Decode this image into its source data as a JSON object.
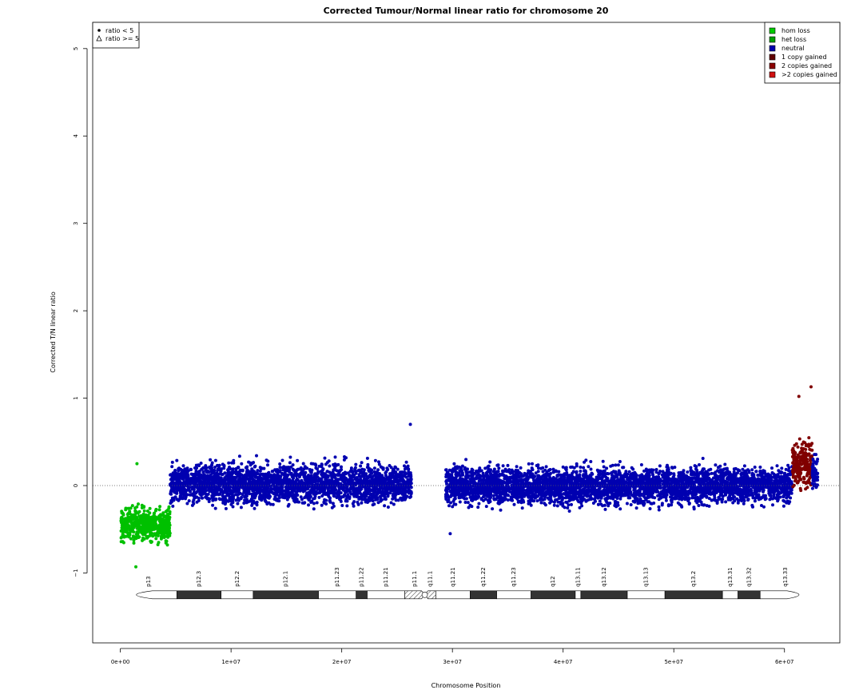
{
  "chart_data": {
    "type": "scatter",
    "title": "Corrected Tumour/Normal linear ratio for chromosome  20",
    "xlabel": "Chromosome Position",
    "ylabel": "Corrected T/N linear ratio",
    "xlim": [
      -2500000,
      65000000
    ],
    "ylim": [
      -1.8,
      5.3
    ],
    "x_ticks": [
      0,
      10000000,
      20000000,
      30000000,
      40000000,
      50000000,
      60000000
    ],
    "x_tick_labels": [
      "0e+00",
      "1e+07",
      "2e+07",
      "3e+07",
      "4e+07",
      "5e+07",
      "6e+07"
    ],
    "y_ticks": [
      -1,
      0,
      1,
      2,
      3,
      4,
      5
    ],
    "y_tick_labels": [
      "−1",
      "0",
      "1",
      "2",
      "3",
      "4",
      "5"
    ],
    "reference_line_y": 0,
    "shape_legend": {
      "position": "top-left",
      "entries": [
        {
          "label": "ratio < 5",
          "shape": "filled-circle"
        },
        {
          "label": "ratio >= 5",
          "shape": "open-triangle"
        }
      ]
    },
    "color_legend": {
      "position": "top-right",
      "entries": [
        {
          "label": "hom loss",
          "color": "#00cc00"
        },
        {
          "label": "het loss",
          "color": "#00a000"
        },
        {
          "label": "neutral",
          "color": "#0000b0"
        },
        {
          "label": "1 copy gained",
          "color": "#600000"
        },
        {
          "label": "2 copies gained",
          "color": "#8b0000"
        },
        {
          "label": ">2 copies gained",
          "color": "#d01010"
        }
      ]
    },
    "segments": [
      {
        "state": "het loss",
        "start": 60000,
        "end": 4500000,
        "median": -0.45,
        "spread": 0.15,
        "color": "#00c000"
      },
      {
        "state": "neutral",
        "start": 4500000,
        "end": 26300000,
        "median": 0.02,
        "spread": 0.18,
        "color": "#0000b0"
      },
      {
        "state": "neutral",
        "start": 29400000,
        "end": 60700000,
        "median": 0.0,
        "spread": 0.17,
        "color": "#0000b0"
      },
      {
        "state": "1 copy gained",
        "start": 60700000,
        "end": 62500000,
        "median": 0.25,
        "spread": 0.22,
        "color": "#800000"
      },
      {
        "state": "neutral",
        "start": 62500000,
        "end": 63000000,
        "median": 0.15,
        "spread": 0.18,
        "color": "#0000b0"
      }
    ],
    "notable_points": [
      {
        "x": 1500000,
        "y": 0.25
      },
      {
        "x": 1400000,
        "y": -0.93
      },
      {
        "x": 26200000,
        "y": 0.7
      },
      {
        "x": 29800000,
        "y": -0.55
      },
      {
        "x": 62400000,
        "y": 1.13
      },
      {
        "x": 61300000,
        "y": 1.02
      }
    ],
    "ideogram": {
      "y_position": -1.25,
      "centromere": 27500000,
      "bands": [
        {
          "name": "p13",
          "start": 0,
          "end": 5100000,
          "stain": "gneg"
        },
        {
          "name": "p12.3",
          "start": 5100000,
          "end": 9100000,
          "stain": "gpos"
        },
        {
          "name": "p12.2",
          "start": 9100000,
          "end": 12000000,
          "stain": "gneg"
        },
        {
          "name": "p12.1",
          "start": 12000000,
          "end": 17900000,
          "stain": "gpos"
        },
        {
          "name": "p11.23",
          "start": 17900000,
          "end": 21300000,
          "stain": "gneg"
        },
        {
          "name": "p11.22",
          "start": 21300000,
          "end": 22300000,
          "stain": "gpos"
        },
        {
          "name": "p11.21",
          "start": 22300000,
          "end": 25700000,
          "stain": "gneg"
        },
        {
          "name": "p11.1",
          "start": 25700000,
          "end": 27500000,
          "stain": "acen"
        },
        {
          "name": "q11.1",
          "start": 27500000,
          "end": 28500000,
          "stain": "acen"
        },
        {
          "name": "q11.21",
          "start": 28500000,
          "end": 31600000,
          "stain": "gneg"
        },
        {
          "name": "q11.22",
          "start": 31600000,
          "end": 34000000,
          "stain": "gpos"
        },
        {
          "name": "q11.23",
          "start": 34000000,
          "end": 37100000,
          "stain": "gneg"
        },
        {
          "name": "q12",
          "start": 37100000,
          "end": 41100000,
          "stain": "gpos"
        },
        {
          "name": "q13.11",
          "start": 41100000,
          "end": 41600000,
          "stain": "gneg"
        },
        {
          "name": "q13.12",
          "start": 41600000,
          "end": 45800000,
          "stain": "gpos"
        },
        {
          "name": "q13.13",
          "start": 45800000,
          "end": 49200000,
          "stain": "gneg"
        },
        {
          "name": "q13.2",
          "start": 49200000,
          "end": 54400000,
          "stain": "gpos"
        },
        {
          "name": "q13.31",
          "start": 54400000,
          "end": 55800000,
          "stain": "gneg"
        },
        {
          "name": "q13.32",
          "start": 55800000,
          "end": 57800000,
          "stain": "gpos"
        },
        {
          "name": "q13.33",
          "start": 57800000,
          "end": 62400000,
          "stain": "gneg"
        }
      ]
    }
  }
}
